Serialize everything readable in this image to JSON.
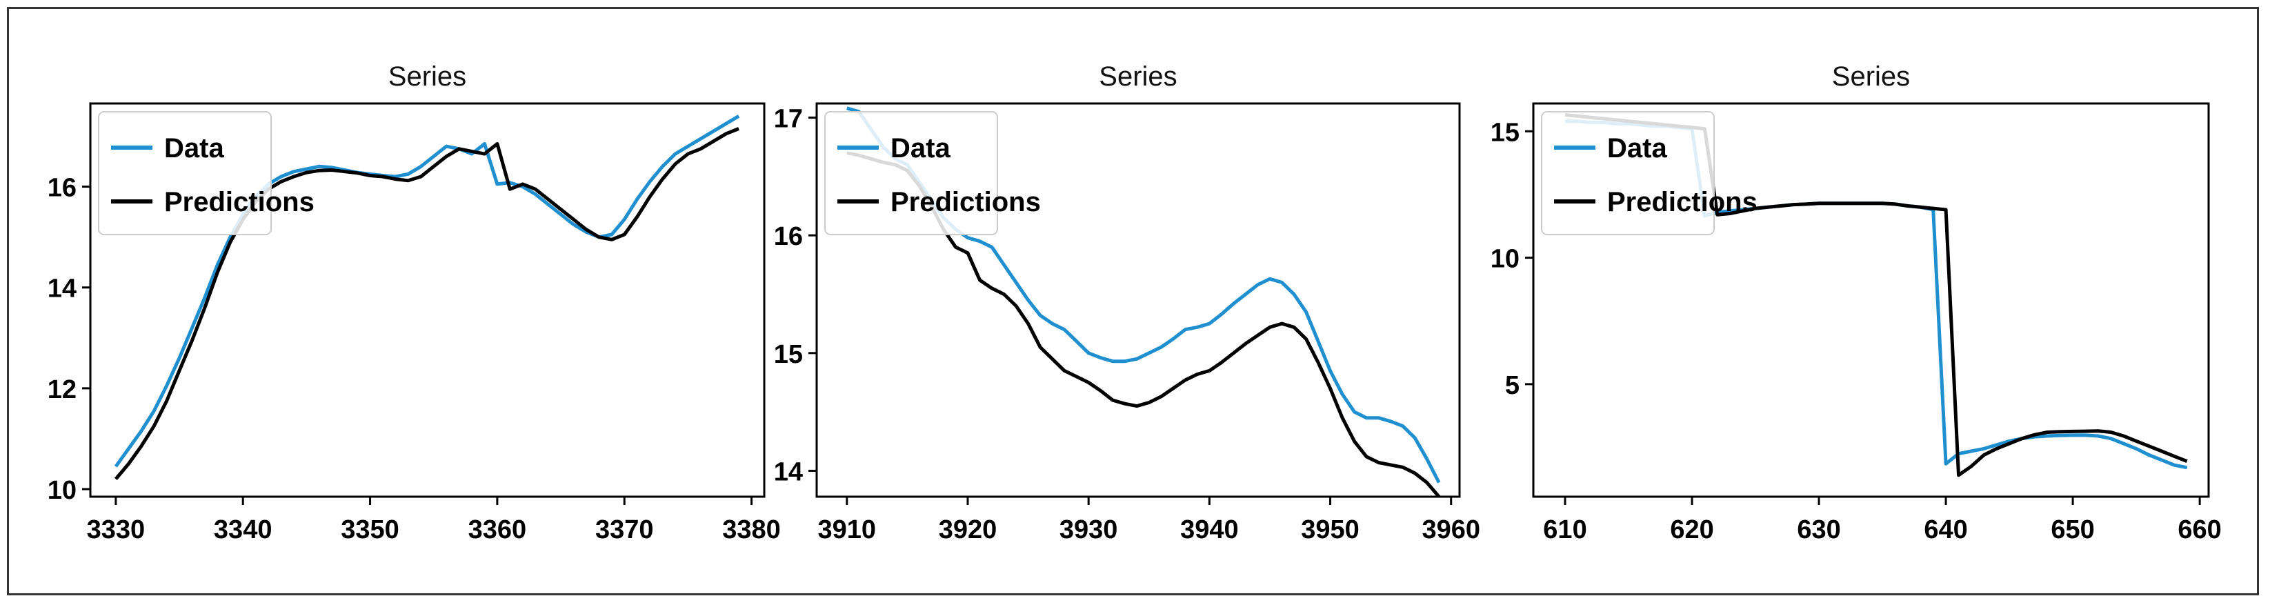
{
  "chart_data": [
    {
      "type": "line",
      "title": "Series",
      "xlabel": "",
      "ylabel": "",
      "xlim": [
        3328,
        3381
      ],
      "ylim": [
        9.85,
        17.65
      ],
      "xticks": [
        3330,
        3340,
        3350,
        3360,
        3370,
        3380
      ],
      "yticks": [
        10,
        12,
        14,
        16
      ],
      "legend": {
        "position": "top-left",
        "entries": [
          "Data",
          "Predictions"
        ]
      },
      "series": [
        {
          "name": "Data",
          "color": "#1f8fd0",
          "x": [
            3330,
            3331,
            3332,
            3333,
            3334,
            3335,
            3336,
            3337,
            3338,
            3339,
            3340,
            3341,
            3342,
            3343,
            3344,
            3345,
            3346,
            3347,
            3348,
            3349,
            3350,
            3351,
            3352,
            3353,
            3354,
            3355,
            3356,
            3357,
            3358,
            3359,
            3360,
            3361,
            3362,
            3363,
            3364,
            3365,
            3366,
            3367,
            3368,
            3369,
            3370,
            3371,
            3372,
            3373,
            3374,
            3375,
            3376,
            3377,
            3378,
            3379
          ],
          "y": [
            10.45,
            10.8,
            11.15,
            11.55,
            12.05,
            12.6,
            13.2,
            13.8,
            14.45,
            15.0,
            15.45,
            15.8,
            16.05,
            16.2,
            16.3,
            16.35,
            16.4,
            16.38,
            16.33,
            16.28,
            16.25,
            16.22,
            16.2,
            16.25,
            16.4,
            16.6,
            16.8,
            16.75,
            16.65,
            16.85,
            16.05,
            16.08,
            16.0,
            15.85,
            15.65,
            15.45,
            15.25,
            15.1,
            15.0,
            15.05,
            15.35,
            15.75,
            16.1,
            16.4,
            16.65,
            16.8,
            16.95,
            17.1,
            17.25,
            17.4
          ]
        },
        {
          "name": "Predictions",
          "color": "#000000",
          "x": [
            3330,
            3331,
            3332,
            3333,
            3334,
            3335,
            3336,
            3337,
            3338,
            3339,
            3340,
            3341,
            3342,
            3343,
            3344,
            3345,
            3346,
            3347,
            3348,
            3349,
            3350,
            3351,
            3352,
            3353,
            3354,
            3355,
            3356,
            3357,
            3358,
            3359,
            3360,
            3361,
            3362,
            3363,
            3364,
            3365,
            3366,
            3367,
            3368,
            3369,
            3370,
            3371,
            3372,
            3373,
            3374,
            3375,
            3376,
            3377,
            3378,
            3379
          ],
          "y": [
            10.2,
            10.5,
            10.85,
            11.25,
            11.75,
            12.35,
            12.95,
            13.6,
            14.3,
            14.9,
            15.35,
            15.7,
            15.95,
            16.1,
            16.2,
            16.28,
            16.32,
            16.33,
            16.3,
            16.27,
            16.22,
            16.2,
            16.15,
            16.12,
            16.2,
            16.4,
            16.6,
            16.75,
            16.7,
            16.65,
            16.85,
            15.95,
            16.05,
            15.95,
            15.75,
            15.55,
            15.35,
            15.15,
            15.0,
            14.95,
            15.05,
            15.4,
            15.8,
            16.15,
            16.45,
            16.65,
            16.75,
            16.9,
            17.05,
            17.15
          ]
        }
      ]
    },
    {
      "type": "line",
      "title": "Series",
      "xlabel": "",
      "ylabel": "",
      "xlim": [
        3907.5,
        3960.7
      ],
      "ylim": [
        13.78,
        17.12
      ],
      "xticks": [
        3910,
        3920,
        3930,
        3940,
        3950,
        3960
      ],
      "yticks": [
        14,
        15,
        16,
        17
      ],
      "legend": {
        "position": "top-left",
        "entries": [
          "Data",
          "Predictions"
        ]
      },
      "series": [
        {
          "name": "Data",
          "color": "#1f8fd0",
          "x": [
            3910,
            3911,
            3912,
            3913,
            3914,
            3915,
            3916,
            3917,
            3918,
            3919,
            3920,
            3921,
            3922,
            3923,
            3924,
            3925,
            3926,
            3927,
            3928,
            3929,
            3930,
            3931,
            3932,
            3933,
            3934,
            3935,
            3936,
            3937,
            3938,
            3939,
            3940,
            3941,
            3942,
            3943,
            3944,
            3945,
            3946,
            3947,
            3948,
            3949,
            3950,
            3951,
            3952,
            3953,
            3954,
            3955,
            3956,
            3957,
            3958,
            3959
          ],
          "y": [
            17.08,
            17.05,
            16.9,
            16.75,
            16.65,
            16.6,
            16.45,
            16.3,
            16.15,
            16.05,
            15.98,
            15.95,
            15.9,
            15.75,
            15.6,
            15.45,
            15.32,
            15.25,
            15.2,
            15.1,
            15.0,
            14.96,
            14.93,
            14.93,
            14.95,
            15.0,
            15.05,
            15.12,
            15.2,
            15.22,
            15.25,
            15.33,
            15.42,
            15.5,
            15.58,
            15.63,
            15.6,
            15.5,
            15.35,
            15.1,
            14.85,
            14.65,
            14.5,
            14.45,
            14.45,
            14.42,
            14.38,
            14.28,
            14.1,
            13.9
          ]
        },
        {
          "name": "Predictions",
          "color": "#000000",
          "x": [
            3910,
            3911,
            3912,
            3913,
            3914,
            3915,
            3916,
            3917,
            3918,
            3919,
            3920,
            3921,
            3922,
            3923,
            3924,
            3925,
            3926,
            3927,
            3928,
            3929,
            3930,
            3931,
            3932,
            3933,
            3934,
            3935,
            3936,
            3937,
            3938,
            3939,
            3940,
            3941,
            3942,
            3943,
            3944,
            3945,
            3946,
            3947,
            3948,
            3949,
            3950,
            3951,
            3952,
            3953,
            3954,
            3955,
            3956,
            3957,
            3958,
            3959
          ],
          "y": [
            16.7,
            16.68,
            16.65,
            16.62,
            16.6,
            16.55,
            16.42,
            16.25,
            16.05,
            15.9,
            15.85,
            15.62,
            15.55,
            15.5,
            15.4,
            15.25,
            15.05,
            14.95,
            14.85,
            14.8,
            14.75,
            14.68,
            14.6,
            14.57,
            14.55,
            14.58,
            14.63,
            14.7,
            14.77,
            14.82,
            14.85,
            14.92,
            15.0,
            15.08,
            15.15,
            15.22,
            15.25,
            15.22,
            15.12,
            14.92,
            14.7,
            14.45,
            14.25,
            14.12,
            14.07,
            14.05,
            14.03,
            13.98,
            13.9,
            13.78
          ]
        }
      ]
    },
    {
      "type": "line",
      "title": "Series",
      "xlabel": "",
      "ylabel": "",
      "xlim": [
        607.5,
        660.7
      ],
      "ylim": [
        0.55,
        16.1
      ],
      "xticks": [
        610,
        620,
        630,
        640,
        650,
        660
      ],
      "yticks": [
        5,
        10,
        15
      ],
      "legend": {
        "position": "top-left",
        "entries": [
          "Data",
          "Predictions"
        ]
      },
      "series": [
        {
          "name": "Data",
          "color": "#1f8fd0",
          "x": [
            610,
            611,
            612,
            613,
            614,
            615,
            616,
            617,
            618,
            619,
            620,
            621,
            622,
            623,
            624,
            625,
            626,
            627,
            628,
            629,
            630,
            631,
            632,
            633,
            634,
            635,
            636,
            637,
            638,
            639,
            640,
            641,
            642,
            643,
            644,
            645,
            646,
            647,
            648,
            649,
            650,
            651,
            652,
            653,
            654,
            655,
            656,
            657,
            658,
            659
          ],
          "y": [
            15.4,
            15.4,
            15.35,
            15.35,
            15.3,
            15.3,
            15.25,
            15.2,
            15.2,
            15.15,
            15.1,
            11.65,
            11.8,
            11.85,
            11.9,
            11.95,
            12.0,
            12.05,
            12.1,
            12.12,
            12.15,
            12.15,
            12.15,
            12.15,
            12.15,
            12.15,
            12.12,
            12.05,
            12.0,
            11.9,
            1.85,
            2.25,
            2.35,
            2.45,
            2.6,
            2.75,
            2.85,
            2.92,
            2.95,
            2.97,
            2.98,
            2.98,
            2.95,
            2.85,
            2.65,
            2.45,
            2.2,
            2.0,
            1.8,
            1.7
          ]
        },
        {
          "name": "Predictions",
          "color": "#000000",
          "x": [
            610,
            611,
            612,
            613,
            614,
            615,
            616,
            617,
            618,
            619,
            620,
            621,
            622,
            623,
            624,
            625,
            626,
            627,
            628,
            629,
            630,
            631,
            632,
            633,
            634,
            635,
            636,
            637,
            638,
            639,
            640,
            641,
            642,
            643,
            644,
            645,
            646,
            647,
            648,
            649,
            650,
            651,
            652,
            653,
            654,
            655,
            656,
            657,
            658,
            659
          ],
          "y": [
            15.65,
            15.6,
            15.55,
            15.5,
            15.45,
            15.4,
            15.35,
            15.3,
            15.25,
            15.2,
            15.15,
            15.1,
            11.7,
            11.75,
            11.85,
            11.95,
            12.0,
            12.05,
            12.1,
            12.12,
            12.15,
            12.15,
            12.15,
            12.15,
            12.15,
            12.15,
            12.12,
            12.05,
            12.0,
            11.95,
            11.9,
            1.4,
            1.75,
            2.2,
            2.45,
            2.65,
            2.85,
            3.0,
            3.1,
            3.12,
            3.13,
            3.14,
            3.15,
            3.1,
            2.95,
            2.75,
            2.55,
            2.35,
            2.15,
            1.95
          ]
        }
      ]
    }
  ]
}
